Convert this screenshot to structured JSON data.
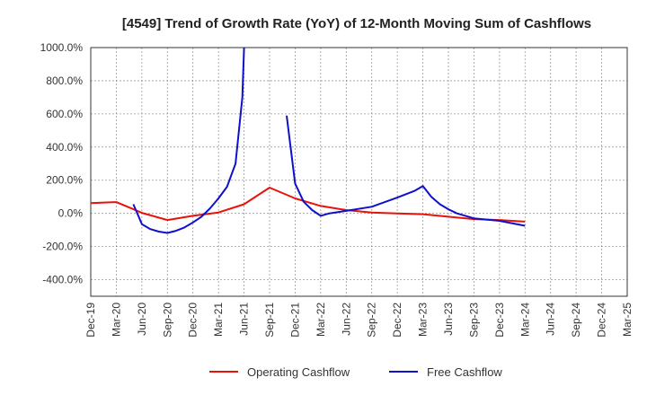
{
  "chart_data": {
    "type": "line",
    "title": "[4549]  Trend of Growth Rate (YoY) of 12-Month Moving Sum of Cashflows",
    "xlabel": "",
    "ylabel": "",
    "ylim": [
      -500,
      1000
    ],
    "y_ticks": [
      {
        "value": 1000,
        "label": "1000.0%"
      },
      {
        "value": 800,
        "label": "800.0%"
      },
      {
        "value": 600,
        "label": "600.0%"
      },
      {
        "value": 400,
        "label": "400.0%"
      },
      {
        "value": 200,
        "label": "200.0%"
      },
      {
        "value": 0,
        "label": "0.0%"
      },
      {
        "value": -200,
        "label": "-200.0%"
      },
      {
        "value": -400,
        "label": "-400.0%"
      }
    ],
    "x_ticks": [
      "Dec-19",
      "Mar-20",
      "Jun-20",
      "Sep-20",
      "Dec-20",
      "Mar-21",
      "Jun-21",
      "Sep-21",
      "Dec-21",
      "Mar-22",
      "Jun-22",
      "Sep-22",
      "Dec-22",
      "Mar-23",
      "Jun-23",
      "Sep-23",
      "Dec-23",
      "Mar-24",
      "Jun-24",
      "Sep-24",
      "Dec-24",
      "Mar-25"
    ],
    "grid": true,
    "legend_position": "bottom",
    "series": [
      {
        "name": "Operating Cashflow",
        "color": "#e8120c",
        "points": [
          [
            0,
            62
          ],
          [
            3,
            68
          ],
          [
            6,
            3
          ],
          [
            9,
            -40
          ],
          [
            12,
            -15
          ],
          [
            15,
            5
          ],
          [
            18,
            55
          ],
          [
            21,
            155
          ],
          [
            24,
            90
          ],
          [
            27,
            45
          ],
          [
            30,
            20
          ],
          [
            33,
            5
          ],
          [
            36,
            0
          ],
          [
            39,
            -5
          ],
          [
            42,
            -20
          ],
          [
            45,
            -35
          ],
          [
            48,
            -40
          ],
          [
            51,
            -50
          ]
        ]
      },
      {
        "name": "Free Cashflow",
        "color": "#1010cc",
        "points": [
          [
            5,
            55
          ],
          [
            6,
            -65
          ],
          [
            7,
            -95
          ],
          [
            8,
            -110
          ],
          [
            9,
            -118
          ],
          [
            10,
            -105
          ],
          [
            11,
            -85
          ],
          [
            12,
            -55
          ],
          [
            13,
            -20
          ],
          [
            14,
            30
          ],
          [
            15,
            90
          ],
          [
            16,
            160
          ],
          [
            17,
            300
          ],
          [
            17.8,
            700
          ],
          [
            18,
            1000
          ],
          null,
          [
            23,
            590
          ],
          [
            24,
            180
          ],
          [
            25,
            70
          ],
          [
            26,
            20
          ],
          [
            27,
            -15
          ],
          [
            28,
            0
          ],
          [
            30,
            15
          ],
          [
            33,
            40
          ],
          [
            36,
            95
          ],
          [
            38,
            135
          ],
          [
            39,
            165
          ],
          [
            40,
            100
          ],
          [
            41,
            55
          ],
          [
            42,
            25
          ],
          [
            43,
            0
          ],
          [
            45,
            -30
          ],
          [
            48,
            -45
          ],
          [
            51,
            -75
          ]
        ]
      }
    ]
  }
}
